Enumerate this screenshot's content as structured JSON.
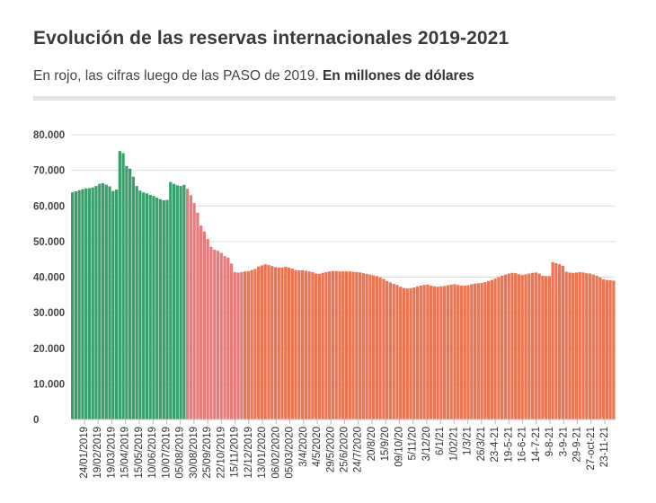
{
  "header": {
    "title": "Evolución de las reservas internacionales 2019-2021",
    "subtitle_plain": "En rojo, las cifras luego de las PASO de 2019.",
    "subtitle_bold": "En millones de dólares"
  },
  "colors": {
    "pre_paso": "#3aa06b",
    "post_paso": "#ee7350",
    "post_paso_transition": "#ea7a7a",
    "grid": "#dddddd"
  },
  "chart_data": {
    "type": "bar",
    "title": "Evolución de las reservas internacionales 2019-2021",
    "subtitle": "En rojo, las cifras luego de las PASO de 2019. En millones de dólares",
    "y_ticks": [
      "80.000",
      "70.000",
      "60.000",
      "50.000",
      "40.000",
      "30.000",
      "20.000",
      "10.000",
      "0"
    ],
    "ylim": [
      0,
      80000
    ],
    "x_tick_labels": [
      "24/01/2019",
      "19/02/2019",
      "19/03/2019",
      "15/04/2019",
      "15/05/2019",
      "10/06/2019",
      "10/07/2019",
      "05/08/2019",
      "30/08/2019",
      "25/09/2019",
      "22/10/2019",
      "15/11/2019",
      "12/12/2019",
      "13/01/2020",
      "06/02/2020",
      "05/03/2020",
      "3/4/2020",
      "4/5/2020",
      "29/5/2020",
      "25/6/2020",
      "24/7/2020",
      "20/8/20",
      "15/9/20",
      "09/10/20",
      "5/11/20",
      "3/12/20",
      "6/1/21",
      "1/02/21",
      "1/3/21",
      "26/3/21",
      "23-4-21",
      "19-5-21",
      "16-6-21",
      "14-7-21",
      "9-8-21",
      "3-9-21",
      "29-9-21",
      "27-oct-21",
      "23-11-21"
    ],
    "series": [
      {
        "segment": "pre",
        "x": [
          "2019-01-02",
          "2019-01-07",
          "2019-01-14",
          "2019-01-21",
          "2019-01-28",
          "2019-02-04",
          "2019-02-11",
          "2019-02-18",
          "2019-02-25",
          "2019-03-04",
          "2019-03-11",
          "2019-03-18",
          "2019-03-25",
          "2019-03-29",
          "2019-04-02",
          "2019-04-08",
          "2019-04-15",
          "2019-04-22",
          "2019-04-29",
          "2019-05-06",
          "2019-05-13",
          "2019-05-20",
          "2019-05-27",
          "2019-06-03",
          "2019-06-10",
          "2019-06-17",
          "2019-06-24",
          "2019-07-01",
          "2019-07-08",
          "2019-07-15",
          "2019-07-22",
          "2019-07-29",
          "2019-08-05",
          "2019-08-09"
        ],
        "values": [
          63800,
          64100,
          64400,
          64700,
          64900,
          65000,
          65200,
          65600,
          66200,
          66400,
          66000,
          65500,
          64200,
          64600,
          75400,
          74800,
          71200,
          70500,
          68200,
          65600,
          64300,
          63800,
          63500,
          63100,
          62800,
          62300,
          61900,
          61600,
          61700,
          66700,
          66200,
          65800,
          65600,
          65900
        ]
      },
      {
        "segment": "post",
        "x": [
          "2019-08-12",
          "2019-08-15",
          "2019-08-19",
          "2019-08-22",
          "2019-08-26",
          "2019-08-30",
          "2019-09-04",
          "2019-09-10",
          "2019-09-16",
          "2019-09-23",
          "2019-09-30",
          "2019-10-07",
          "2019-10-14",
          "2019-10-21",
          "2019-10-28",
          "2019-11-04",
          "2019-11-11",
          "2019-11-18",
          "2019-11-25",
          "2019-12-02",
          "2019-12-09",
          "2019-12-16",
          "2019-12-23",
          "2019-12-30",
          "2020-01-06",
          "2020-01-13",
          "2020-01-20",
          "2020-01-27",
          "2020-02-03",
          "2020-02-10",
          "2020-02-17",
          "2020-02-24",
          "2020-03-02",
          "2020-03-09",
          "2020-03-16",
          "2020-03-23",
          "2020-03-30",
          "2020-04-06",
          "2020-04-13",
          "2020-04-20",
          "2020-04-27",
          "2020-05-04",
          "2020-05-11",
          "2020-05-18",
          "2020-05-25",
          "2020-06-01",
          "2020-06-08",
          "2020-06-15",
          "2020-06-22",
          "2020-06-29",
          "2020-07-06",
          "2020-07-13",
          "2020-07-20",
          "2020-07-27",
          "2020-08-03",
          "2020-08-10",
          "2020-08-17",
          "2020-08-24",
          "2020-08-31",
          "2020-09-07",
          "2020-09-14",
          "2020-09-21",
          "2020-09-28",
          "2020-10-05",
          "2020-10-12",
          "2020-10-19",
          "2020-10-26",
          "2020-11-02",
          "2020-11-09",
          "2020-11-16",
          "2020-11-23",
          "2020-11-30",
          "2020-12-07",
          "2020-12-14",
          "2020-12-21",
          "2020-12-28",
          "2021-01-04",
          "2021-01-11",
          "2021-01-18",
          "2021-01-25",
          "2021-02-01",
          "2021-02-08",
          "2021-02-15",
          "2021-02-22",
          "2021-03-01",
          "2021-03-08",
          "2021-03-15",
          "2021-03-22",
          "2021-03-29",
          "2021-04-05",
          "2021-04-12",
          "2021-04-19",
          "2021-04-26",
          "2021-05-03",
          "2021-05-10",
          "2021-05-17",
          "2021-05-24",
          "2021-05-31",
          "2021-06-07",
          "2021-06-14",
          "2021-06-21",
          "2021-06-28",
          "2021-07-05",
          "2021-07-12",
          "2021-07-19",
          "2021-07-26",
          "2021-08-02",
          "2021-08-09",
          "2021-08-16",
          "2021-08-23",
          "2021-08-30",
          "2021-09-06",
          "2021-09-13",
          "2021-09-20",
          "2021-09-27",
          "2021-10-04",
          "2021-10-11",
          "2021-10-18",
          "2021-10-25",
          "2021-11-01",
          "2021-11-08",
          "2021-11-15",
          "2021-11-22",
          "2021-11-29",
          "2021-12-06",
          "2021-12-13",
          "2021-12-17"
        ],
        "values": [
          64800,
          63000,
          60800,
          58100,
          54500,
          52800,
          50700,
          48500,
          47700,
          47400,
          46800,
          45900,
          45500,
          43800,
          41400,
          41300,
          41400,
          41600,
          41700,
          42000,
          42300,
          43000,
          43300,
          43600,
          43400,
          43100,
          42800,
          42700,
          42700,
          42900,
          42700,
          42400,
          42000,
          41900,
          41900,
          41800,
          41600,
          41400,
          41000,
          40900,
          41200,
          41400,
          41600,
          41700,
          41700,
          41600,
          41600,
          41600,
          41600,
          41500,
          41400,
          41300,
          41100,
          40900,
          40700,
          40500,
          40300,
          39900,
          39500,
          38900,
          38500,
          38100,
          37800,
          37300,
          36900,
          36800,
          36900,
          37100,
          37400,
          37600,
          37800,
          37900,
          37600,
          37400,
          37300,
          37400,
          37500,
          37700,
          37900,
          38000,
          37800,
          37600,
          37600,
          37700,
          38000,
          38200,
          38300,
          38400,
          38600,
          38900,
          39200,
          39600,
          40000,
          40400,
          40700,
          41000,
          41200,
          41100,
          40800,
          40600,
          40800,
          41000,
          41200,
          41300,
          41000,
          40400,
          40300,
          40300,
          44200,
          43900,
          43600,
          43200,
          41500,
          41300,
          41200,
          41300,
          41400,
          41300,
          41100,
          41000,
          40700,
          40400,
          39900,
          39400,
          39200,
          39100,
          39000
        ]
      }
    ]
  }
}
